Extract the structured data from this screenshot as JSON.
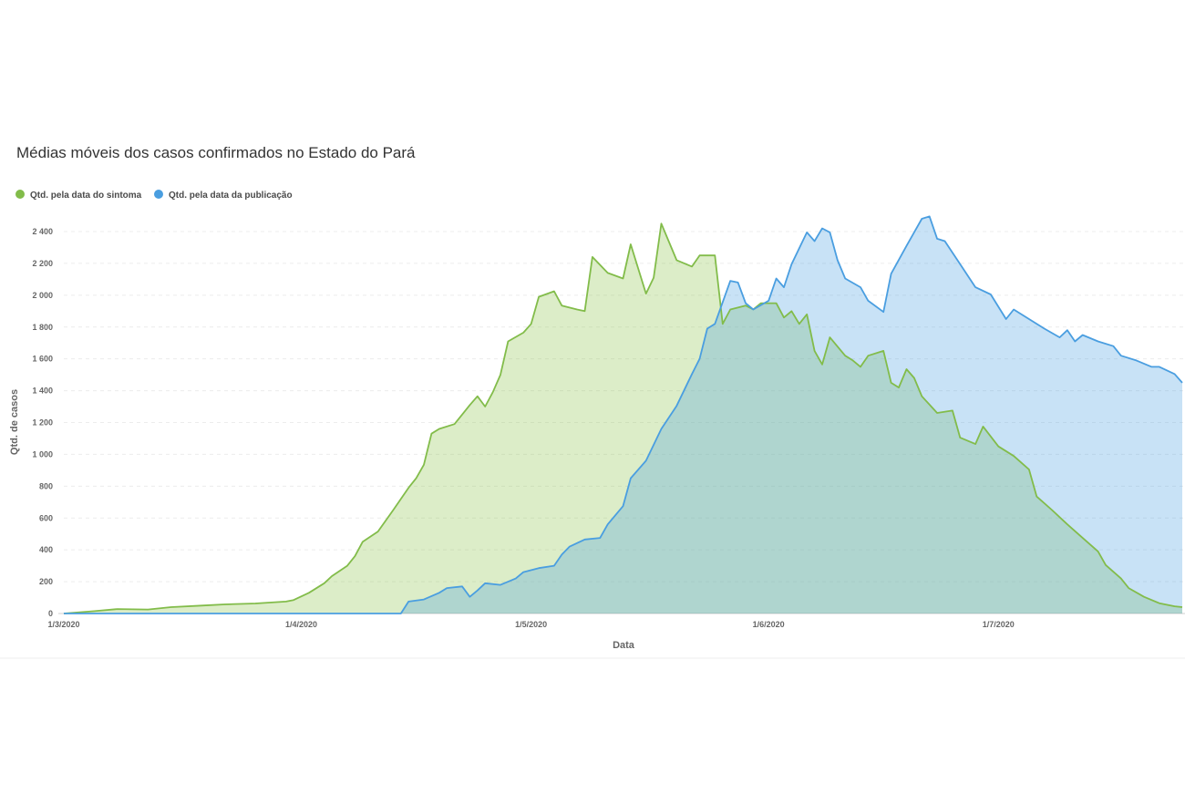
{
  "chart_data": {
    "type": "area",
    "title": "Médias móveis dos casos confirmados no Estado do Pará",
    "xlabel": "Data",
    "ylabel": "Qtd. de casos",
    "x_unit": "days since 1/3/2020",
    "xlim": [
      0,
      146
    ],
    "ylim": [
      0,
      2400
    ],
    "yticks": [
      0,
      200,
      400,
      600,
      800,
      1000,
      1200,
      1400,
      1600,
      1800,
      2000,
      2200,
      2400
    ],
    "ytick_labels": [
      "0",
      "200",
      "400",
      "600",
      "800",
      "1 000",
      "1 200",
      "1 400",
      "1 600",
      "1 800",
      "2 000",
      "2 200",
      "2 400"
    ],
    "xticks": [
      0,
      31,
      61,
      92,
      122
    ],
    "xtick_labels": [
      "1/3/2020",
      "1/4/2020",
      "1/5/2020",
      "1/6/2020",
      "1/7/2020"
    ],
    "grid": true,
    "legend_position": "top-left",
    "series": [
      {
        "name": "Qtd. pela data do sintoma",
        "color": "#82bc4a",
        "fill": "#8bc34a",
        "x": [
          0,
          4,
          7,
          11,
          14,
          18,
          21,
          25,
          29,
          30,
          32,
          34,
          35,
          37,
          38,
          39,
          41,
          43,
          45,
          46,
          47,
          48,
          49,
          51,
          53,
          54,
          55,
          56,
          57,
          58,
          60,
          61,
          62,
          64,
          65,
          67,
          68,
          69,
          71,
          73,
          74,
          76,
          77,
          78,
          80,
          82,
          83,
          85,
          86,
          87,
          89,
          90,
          91,
          93,
          94,
          95,
          96,
          97,
          98,
          99,
          100,
          102,
          103,
          104,
          105,
          107,
          108,
          109,
          110,
          111,
          112,
          114,
          116,
          117,
          119,
          120,
          122,
          124,
          126,
          127,
          129,
          131,
          133,
          135,
          136,
          138,
          139,
          141,
          143,
          145,
          146
        ],
        "values": [
          0,
          15,
          28,
          25,
          40,
          50,
          57,
          63,
          75,
          85,
          130,
          190,
          235,
          300,
          360,
          450,
          515,
          650,
          790,
          850,
          935,
          1130,
          1160,
          1190,
          1310,
          1365,
          1300,
          1390,
          1500,
          1710,
          1765,
          1820,
          1990,
          2025,
          1935,
          1910,
          1900,
          2240,
          2140,
          2105,
          2320,
          2010,
          2110,
          2450,
          2220,
          2180,
          2250,
          2250,
          1820,
          1910,
          1935,
          1910,
          1950,
          1950,
          1860,
          1900,
          1820,
          1880,
          1650,
          1565,
          1735,
          1620,
          1590,
          1550,
          1620,
          1650,
          1450,
          1420,
          1535,
          1480,
          1365,
          1260,
          1275,
          1105,
          1065,
          1175,
          1050,
          990,
          905,
          735,
          650,
          560,
          475,
          390,
          305,
          220,
          160,
          105,
          65,
          45,
          40
        ]
      },
      {
        "name": "Qtd. pela data da publicação",
        "color": "#4a9ee0",
        "fill": "#4a9ee0",
        "x": [
          0,
          44,
          45,
          47,
          49,
          50,
          52,
          53,
          54,
          55,
          57,
          59,
          60,
          62,
          64,
          65,
          66,
          68,
          70,
          71,
          73,
          74,
          76,
          78,
          80,
          82,
          83,
          84,
          85,
          87,
          88,
          89,
          90,
          92,
          93,
          94,
          95,
          97,
          98,
          99,
          100,
          101,
          102,
          104,
          105,
          107,
          108,
          110,
          112,
          113,
          114,
          115,
          117,
          119,
          121,
          123,
          124,
          126,
          128,
          130,
          131,
          132,
          133,
          135,
          137,
          138,
          140,
          142,
          143,
          145,
          146
        ],
        "values": [
          0,
          0,
          75,
          88,
          130,
          160,
          170,
          105,
          145,
          190,
          180,
          220,
          260,
          285,
          300,
          370,
          420,
          465,
          475,
          560,
          675,
          850,
          960,
          1160,
          1305,
          1505,
          1600,
          1790,
          1820,
          2090,
          2080,
          1950,
          1910,
          1965,
          2105,
          2050,
          2195,
          2395,
          2340,
          2420,
          2395,
          2220,
          2105,
          2050,
          1965,
          1895,
          2135,
          2310,
          2480,
          2495,
          2355,
          2340,
          2195,
          2050,
          2005,
          1850,
          1910,
          1850,
          1790,
          1735,
          1780,
          1710,
          1750,
          1710,
          1680,
          1620,
          1590,
          1550,
          1550,
          1505,
          1450
        ]
      }
    ]
  }
}
